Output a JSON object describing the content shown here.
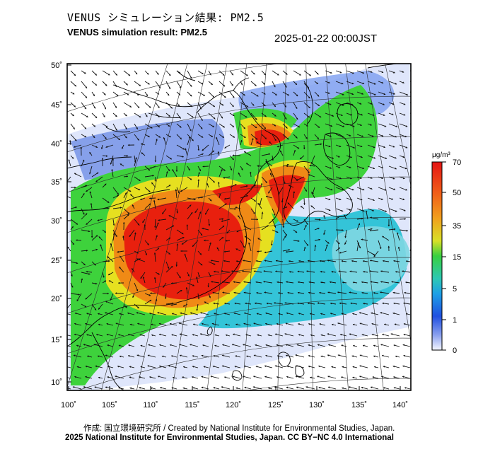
{
  "header": {
    "title_jp": "VENUS シミュレーション結果: PM2.5",
    "title_en": "VENUS simulation result: PM2.5",
    "timestamp": "2025-01-22 00:00JST"
  },
  "map": {
    "lat_labels": [
      "50˚",
      "45˚",
      "40˚",
      "35˚",
      "30˚",
      "25˚",
      "20˚",
      "15˚",
      "10˚"
    ],
    "lon_labels": [
      "100˚",
      "105˚",
      "110˚",
      "115˚",
      "120˚",
      "125˚",
      "130˚",
      "135˚",
      "140˚"
    ],
    "colors": {
      "land_outline": "#000000",
      "very_high": "#e8200e",
      "high": "#f08a16",
      "mid": "#e6e020",
      "moderate": "#3ed23c",
      "low": "#2ec8c8",
      "very_low": "#1e64e6",
      "background": "#dfe6fb"
    }
  },
  "legend": {
    "unit": "μg/m³",
    "ticks": [
      "70",
      "50",
      "35",
      "15",
      "5",
      "1",
      "0"
    ],
    "colors": [
      "#e41414",
      "#f06018",
      "#f0a01e",
      "#d8e028",
      "#38d040",
      "#2ec8b4",
      "#1ea0e6",
      "#2050e0",
      "#8aa0ee",
      "#f4f6ff"
    ]
  },
  "footer": {
    "credit": "作成: 国立環境研究所 / Created by National Institute for Environmental Studies, Japan.",
    "license": "2025 National Institute for Environmental Studies, Japan. CC BY−NC 4.0 International"
  }
}
